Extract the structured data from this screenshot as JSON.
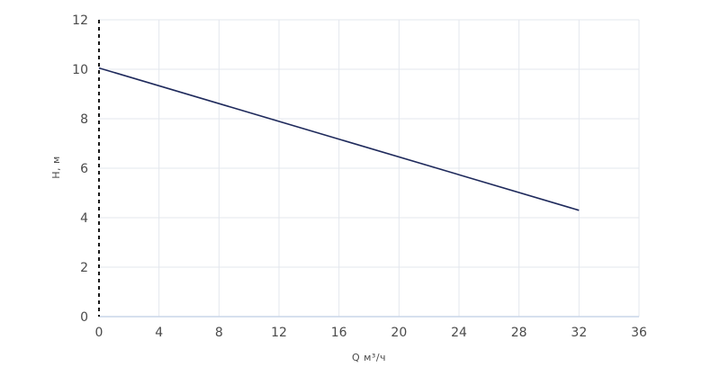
{
  "chart_data": {
    "type": "line",
    "xlabel": "Q м³/ч",
    "ylabel": "H, м",
    "xlim": [
      0,
      36
    ],
    "ylim": [
      0,
      12
    ],
    "x_ticks": [
      0,
      4,
      8,
      12,
      16,
      20,
      24,
      28,
      32,
      36
    ],
    "y_ticks": [
      0,
      2,
      4,
      6,
      8,
      10,
      12
    ],
    "grid": true,
    "series": [
      {
        "color": "#1f2a5c",
        "x": [
          0,
          32
        ],
        "y": [
          10.05,
          4.3
        ]
      }
    ]
  }
}
